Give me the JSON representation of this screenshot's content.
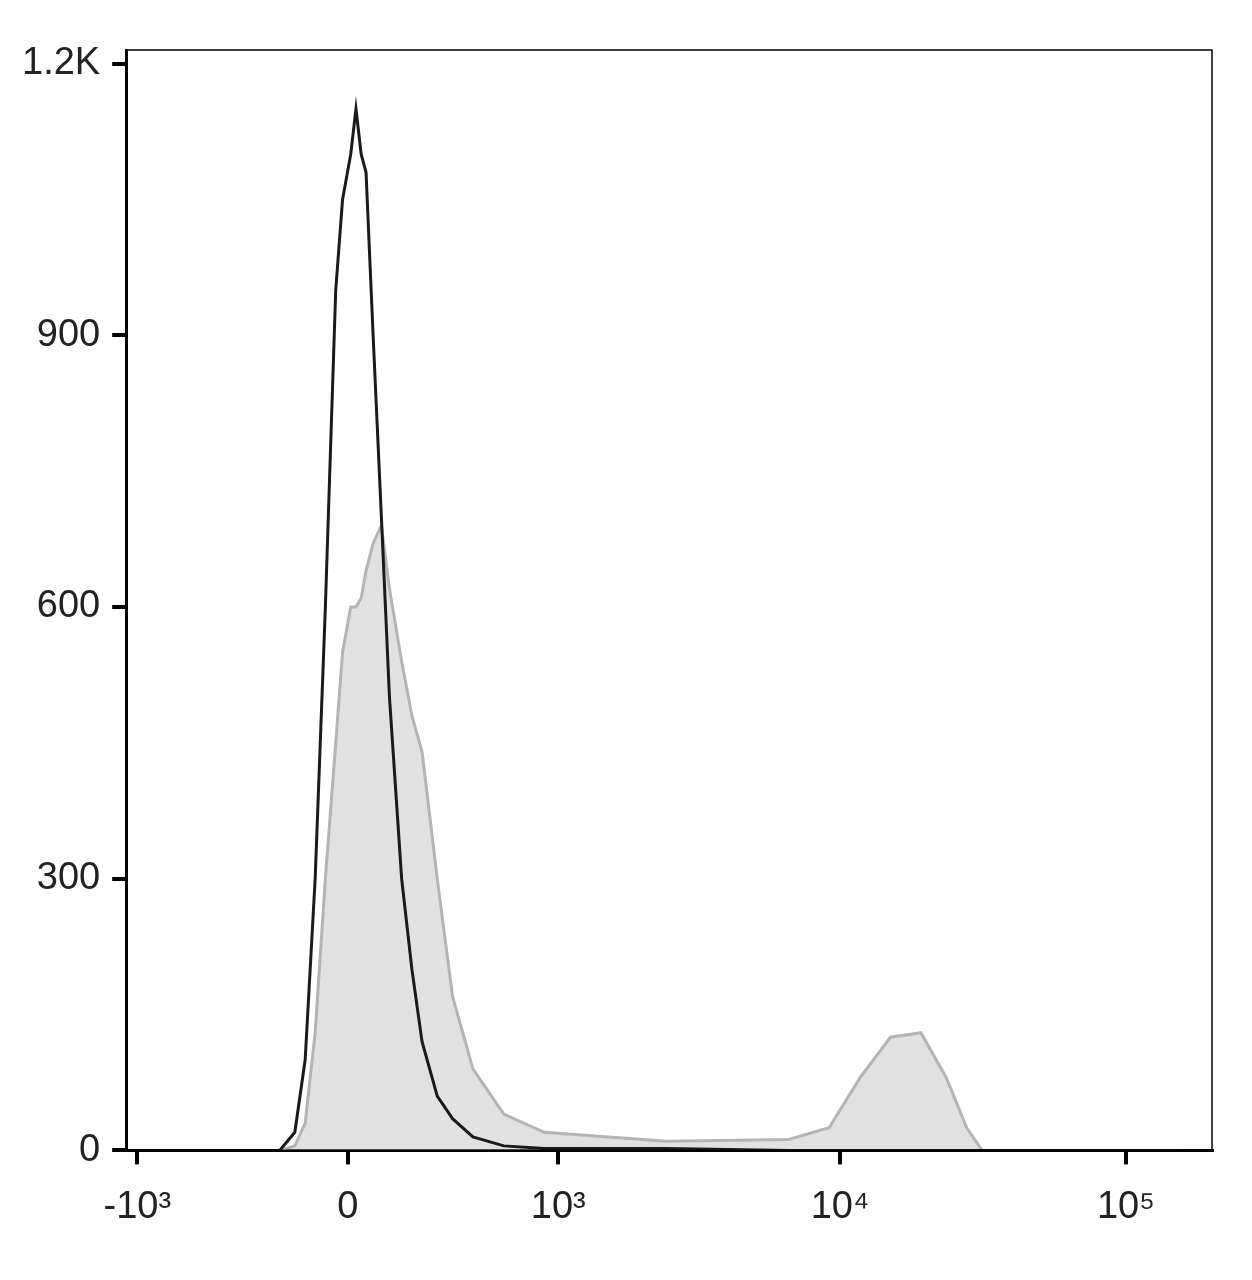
{
  "chart_data": {
    "type": "line",
    "x": [
      -219,
      -167,
      -133,
      -101,
      -69,
      -37,
      -16,
      9,
      25,
      41,
      56,
      78,
      104,
      130,
      170,
      205,
      241,
      298,
      360,
      451,
      613,
      885,
      2460,
      6610,
      9160,
      11740,
      15010,
      19190,
      23560,
      27740,
      31390,
      150000
    ],
    "series": [
      {
        "type": "area",
        "color": "#b4b4b4",
        "values": [
          0,
          5,
          30,
          130,
          300,
          450,
          550,
          600,
          600,
          610,
          640,
          670,
          690,
          620,
          540,
          480,
          440,
          300,
          170,
          90,
          40,
          20,
          10,
          12,
          25,
          80,
          125,
          130,
          80,
          25,
          0,
          0
        ]
      },
      {
        "type": "line",
        "color": "#1a1a1a",
        "values": [
          0,
          20,
          100,
          300,
          600,
          950,
          1050,
          1100,
          1150,
          1100,
          1080,
          900,
          700,
          500,
          300,
          200,
          120,
          60,
          35,
          15,
          5,
          2,
          2,
          0,
          0,
          0,
          0,
          0,
          0,
          0,
          0,
          0
        ]
      }
    ],
    "log": "x",
    "xlim": [
      -1100,
      200000
    ],
    "xticks": [
      {
        "value": -1000,
        "label": "-10³"
      },
      0,
      {
        "value": 1000,
        "label": "10³"
      },
      {
        "value": 10000,
        "label": "10⁴"
      },
      {
        "value": 100000,
        "label": "10⁵"
      }
    ],
    "ylim": [
      0,
      1215
    ],
    "yticks": [
      0,
      300,
      600,
      900,
      {
        "value": 1200,
        "label": "1.2K"
      }
    ],
    "grid": false
  }
}
